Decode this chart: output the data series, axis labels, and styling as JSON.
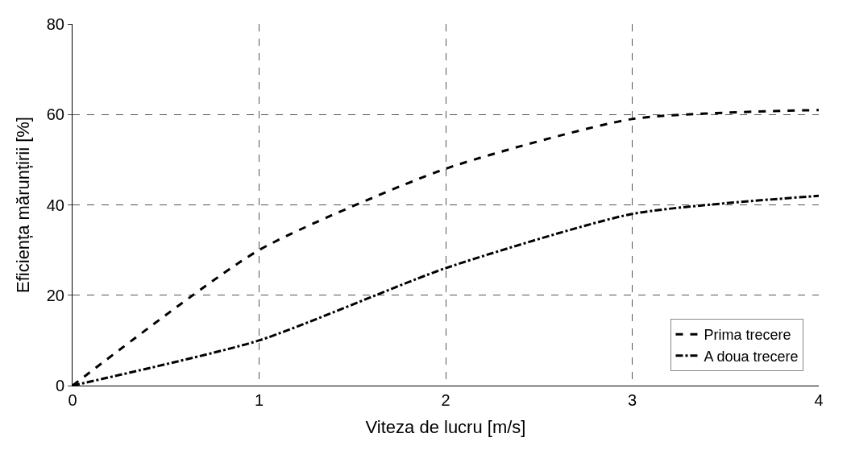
{
  "chart_data": {
    "type": "line",
    "xlabel": "Viteza de lucru [m/s]",
    "ylabel": "Eficiența mărunțirii [%]",
    "x": [
      0,
      1,
      2,
      3,
      4
    ],
    "series": [
      {
        "name": "Prima trecere",
        "color": "#000000",
        "line_style": "dashed",
        "values": [
          0,
          30,
          48,
          59,
          61
        ]
      },
      {
        "name": "A doua trecere",
        "color": "#000000",
        "line_style": "dashdot",
        "values": [
          0,
          10,
          26,
          38,
          42
        ]
      }
    ],
    "xlim": [
      0,
      4
    ],
    "xticks": [
      0,
      1,
      2,
      3,
      4
    ],
    "ylim": [
      0,
      80
    ],
    "yticks": [
      0,
      20,
      40,
      60,
      80
    ],
    "grid": true,
    "legend": "bottom right",
    "marker": "none"
  }
}
